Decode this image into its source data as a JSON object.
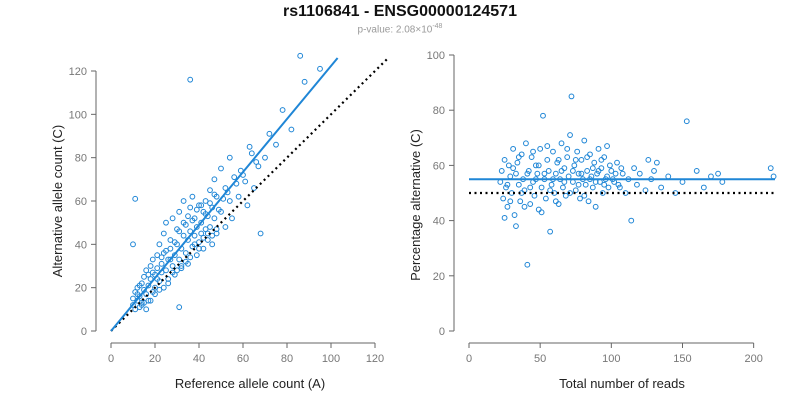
{
  "header": {
    "title": "rs1106841 - ENSG00000124571",
    "pvalue_label": "p-value:",
    "pvalue_mantissa": "2.08",
    "pvalue_times": "×10",
    "pvalue_exponent": "-48"
  },
  "colors": {
    "points": "#1f86d6",
    "fit_line": "#1f86d6",
    "reference_line": "#000000",
    "axis": "#666666"
  },
  "chart_data": [
    {
      "type": "scatter",
      "title": "",
      "xlabel": "Reference allele count (A)",
      "ylabel": "Alternative allele count (C)",
      "xlim": [
        0,
        120
      ],
      "ylim": [
        0,
        120
      ],
      "xticks": [
        0,
        20,
        40,
        60,
        80,
        100,
        120
      ],
      "yticks": [
        0,
        20,
        40,
        60,
        80,
        100,
        120
      ],
      "fit_line": {
        "x": [
          0,
          103
        ],
        "y": [
          0,
          126
        ]
      },
      "reference_line": {
        "x": [
          0,
          126
        ],
        "y": [
          0,
          126
        ]
      },
      "points": [
        [
          10,
          12
        ],
        [
          10,
          15
        ],
        [
          11,
          10
        ],
        [
          11,
          18
        ],
        [
          12,
          14
        ],
        [
          12,
          20
        ],
        [
          13,
          16
        ],
        [
          13,
          11
        ],
        [
          14,
          22
        ],
        [
          14,
          13
        ],
        [
          15,
          19
        ],
        [
          15,
          25
        ],
        [
          16,
          17
        ],
        [
          16,
          28
        ],
        [
          17,
          21
        ],
        [
          17,
          14
        ],
        [
          18,
          30
        ],
        [
          18,
          24
        ],
        [
          19,
          18
        ],
        [
          19,
          33
        ],
        [
          20,
          26
        ],
        [
          20,
          20
        ],
        [
          21,
          35
        ],
        [
          21,
          29
        ],
        [
          22,
          23
        ],
        [
          22,
          40
        ],
        [
          23,
          31
        ],
        [
          23,
          27
        ],
        [
          24,
          45
        ],
        [
          24,
          36
        ],
        [
          25,
          28
        ],
        [
          25,
          50
        ],
        [
          26,
          33
        ],
        [
          26,
          24
        ],
        [
          27,
          38
        ],
        [
          27,
          42
        ],
        [
          28,
          30
        ],
        [
          28,
          52
        ],
        [
          29,
          35
        ],
        [
          29,
          26
        ],
        [
          30,
          40
        ],
        [
          30,
          47
        ],
        [
          31,
          33
        ],
        [
          31,
          55
        ],
        [
          32,
          38
        ],
        [
          32,
          29
        ],
        [
          33,
          44
        ],
        [
          33,
          60
        ],
        [
          34,
          36
        ],
        [
          34,
          49
        ],
        [
          35,
          42
        ],
        [
          35,
          31
        ],
        [
          36,
          57
        ],
        [
          36,
          46
        ],
        [
          37,
          39
        ],
        [
          37,
          62
        ],
        [
          38,
          44
        ],
        [
          38,
          52
        ],
        [
          39,
          35
        ],
        [
          39,
          48
        ],
        [
          40,
          58
        ],
        [
          40,
          41
        ],
        [
          41,
          50
        ],
        [
          41,
          45
        ],
        [
          42,
          38
        ],
        [
          42,
          55
        ],
        [
          43,
          47
        ],
        [
          43,
          60
        ],
        [
          44,
          42
        ],
        [
          44,
          53
        ],
        [
          45,
          65
        ],
        [
          45,
          48
        ],
        [
          46,
          40
        ],
        [
          46,
          57
        ],
        [
          47,
          52
        ],
        [
          47,
          70
        ],
        [
          48,
          45
        ],
        [
          48,
          62
        ],
        [
          50,
          55
        ],
        [
          50,
          75
        ],
        [
          52,
          48
        ],
        [
          52,
          66
        ],
        [
          54,
          60
        ],
        [
          54,
          80
        ],
        [
          55,
          52
        ],
        [
          57,
          68
        ],
        [
          58,
          62
        ],
        [
          60,
          72
        ],
        [
          62,
          58
        ],
        [
          63,
          85
        ],
        [
          65,
          66
        ],
        [
          66,
          78
        ],
        [
          68,
          45
        ],
        [
          70,
          80
        ],
        [
          72,
          91
        ],
        [
          75,
          86
        ],
        [
          78,
          102
        ],
        [
          82,
          93
        ],
        [
          86,
          127
        ],
        [
          88,
          115
        ],
        [
          95,
          121
        ],
        [
          10,
          40
        ],
        [
          11,
          61
        ],
        [
          36,
          116
        ],
        [
          31,
          11
        ],
        [
          14,
          12
        ],
        [
          16,
          10
        ],
        [
          18,
          14
        ],
        [
          20,
          17
        ],
        [
          22,
          19
        ],
        [
          24,
          20
        ],
        [
          26,
          22
        ],
        [
          28,
          27
        ],
        [
          30,
          28
        ],
        [
          32,
          30
        ],
        [
          34,
          32
        ],
        [
          36,
          34
        ],
        [
          38,
          40
        ],
        [
          40,
          38
        ],
        [
          42,
          43
        ],
        [
          44,
          45
        ],
        [
          46,
          44
        ],
        [
          48,
          47
        ],
        [
          12,
          17
        ],
        [
          13,
          21
        ],
        [
          15,
          13
        ],
        [
          17,
          26
        ],
        [
          19,
          27
        ],
        [
          21,
          24
        ],
        [
          23,
          34
        ],
        [
          25,
          37
        ],
        [
          27,
          33
        ],
        [
          29,
          41
        ],
        [
          31,
          46
        ],
        [
          33,
          50
        ],
        [
          35,
          53
        ],
        [
          37,
          51
        ],
        [
          39,
          56
        ],
        [
          41,
          58
        ],
        [
          43,
          54
        ],
        [
          45,
          59
        ],
        [
          47,
          63
        ],
        [
          49,
          56
        ],
        [
          51,
          61
        ],
        [
          53,
          64
        ],
        [
          56,
          71
        ],
        [
          59,
          74
        ],
        [
          61,
          69
        ],
        [
          64,
          82
        ],
        [
          67,
          76
        ]
      ]
    },
    {
      "type": "scatter",
      "title": "",
      "xlabel": "Total number of reads",
      "ylabel": "Percentage alternative (C)",
      "xlim": [
        0,
        215
      ],
      "ylim": [
        0,
        100
      ],
      "xticks": [
        0,
        50,
        100,
        150,
        200
      ],
      "yticks": [
        0,
        20,
        40,
        60,
        80,
        100
      ],
      "fit_line": {
        "x": [
          0,
          215
        ],
        "y": [
          55,
          55
        ]
      },
      "reference_line": {
        "x": [
          0,
          215
        ],
        "y": [
          50,
          50
        ]
      },
      "points": [
        [
          22,
          54
        ],
        [
          23,
          58
        ],
        [
          24,
          48
        ],
        [
          25,
          62
        ],
        [
          26,
          52
        ],
        [
          27,
          45
        ],
        [
          28,
          60
        ],
        [
          29,
          56
        ],
        [
          30,
          50
        ],
        [
          31,
          66
        ],
        [
          32,
          42
        ],
        [
          33,
          57
        ],
        [
          34,
          61
        ],
        [
          35,
          53
        ],
        [
          36,
          47
        ],
        [
          37,
          64
        ],
        [
          38,
          55
        ],
        [
          39,
          51
        ],
        [
          40,
          68
        ],
        [
          41,
          24
        ],
        [
          42,
          58
        ],
        [
          43,
          46
        ],
        [
          44,
          63
        ],
        [
          45,
          54
        ],
        [
          46,
          49
        ],
        [
          47,
          60
        ],
        [
          48,
          57
        ],
        [
          49,
          44
        ],
        [
          50,
          66
        ],
        [
          51,
          52
        ],
        [
          52,
          78
        ],
        [
          53,
          55
        ],
        [
          54,
          48
        ],
        [
          55,
          62
        ],
        [
          56,
          58
        ],
        [
          57,
          36
        ],
        [
          58,
          53
        ],
        [
          59,
          65
        ],
        [
          60,
          50
        ],
        [
          61,
          57
        ],
        [
          62,
          61
        ],
        [
          63,
          46
        ],
        [
          64,
          55
        ],
        [
          65,
          68
        ],
        [
          66,
          52
        ],
        [
          67,
          59
        ],
        [
          68,
          49
        ],
        [
          69,
          63
        ],
        [
          70,
          56
        ],
        [
          71,
          71
        ],
        [
          72,
          85
        ],
        [
          73,
          54
        ],
        [
          74,
          60
        ],
        [
          75,
          51
        ],
        [
          76,
          65
        ],
        [
          77,
          57
        ],
        [
          78,
          48
        ],
        [
          79,
          62
        ],
        [
          80,
          55
        ],
        [
          81,
          69
        ],
        [
          82,
          53
        ],
        [
          83,
          58
        ],
        [
          84,
          47
        ],
        [
          85,
          64
        ],
        [
          86,
          56
        ],
        [
          87,
          52
        ],
        [
          88,
          61
        ],
        [
          89,
          45
        ],
        [
          90,
          57
        ],
        [
          91,
          66
        ],
        [
          92,
          54
        ],
        [
          93,
          59
        ],
        [
          94,
          50
        ],
        [
          95,
          63
        ],
        [
          96,
          55
        ],
        [
          97,
          67
        ],
        [
          98,
          52
        ],
        [
          100,
          58
        ],
        [
          102,
          54
        ],
        [
          104,
          61
        ],
        [
          106,
          52
        ],
        [
          108,
          57
        ],
        [
          110,
          50
        ],
        [
          112,
          55
        ],
        [
          114,
          40
        ],
        [
          116,
          59
        ],
        [
          118,
          53
        ],
        [
          120,
          57
        ],
        [
          124,
          51
        ],
        [
          126,
          62
        ],
        [
          128,
          55
        ],
        [
          130,
          58
        ],
        [
          132,
          61
        ],
        [
          135,
          52
        ],
        [
          140,
          56
        ],
        [
          145,
          50
        ],
        [
          150,
          54
        ],
        [
          153,
          76
        ],
        [
          160,
          58
        ],
        [
          165,
          52
        ],
        [
          170,
          56
        ],
        [
          175,
          57
        ],
        [
          178,
          54
        ],
        [
          212,
          59
        ],
        [
          214,
          56
        ],
        [
          25,
          41
        ],
        [
          27,
          53
        ],
        [
          29,
          47
        ],
        [
          31,
          59
        ],
        [
          33,
          38
        ],
        [
          35,
          63
        ],
        [
          37,
          50
        ],
        [
          39,
          45
        ],
        [
          41,
          57
        ],
        [
          43,
          52
        ],
        [
          45,
          65
        ],
        [
          47,
          55
        ],
        [
          49,
          60
        ],
        [
          51,
          43
        ],
        [
          53,
          57
        ],
        [
          55,
          67
        ],
        [
          57,
          51
        ],
        [
          59,
          55
        ],
        [
          61,
          47
        ],
        [
          63,
          62
        ],
        [
          65,
          58
        ],
        [
          67,
          54
        ],
        [
          69,
          66
        ],
        [
          71,
          50
        ],
        [
          73,
          58
        ],
        [
          75,
          62
        ],
        [
          77,
          53
        ],
        [
          79,
          57
        ],
        [
          81,
          49
        ],
        [
          83,
          63
        ],
        [
          85,
          55
        ],
        [
          87,
          59
        ],
        [
          89,
          54
        ],
        [
          91,
          58
        ],
        [
          93,
          62
        ],
        [
          95,
          53
        ],
        [
          97,
          56
        ],
        [
          99,
          60
        ],
        [
          101,
          55
        ],
        [
          103,
          57
        ],
        [
          105,
          53
        ],
        [
          107,
          59
        ]
      ]
    }
  ]
}
